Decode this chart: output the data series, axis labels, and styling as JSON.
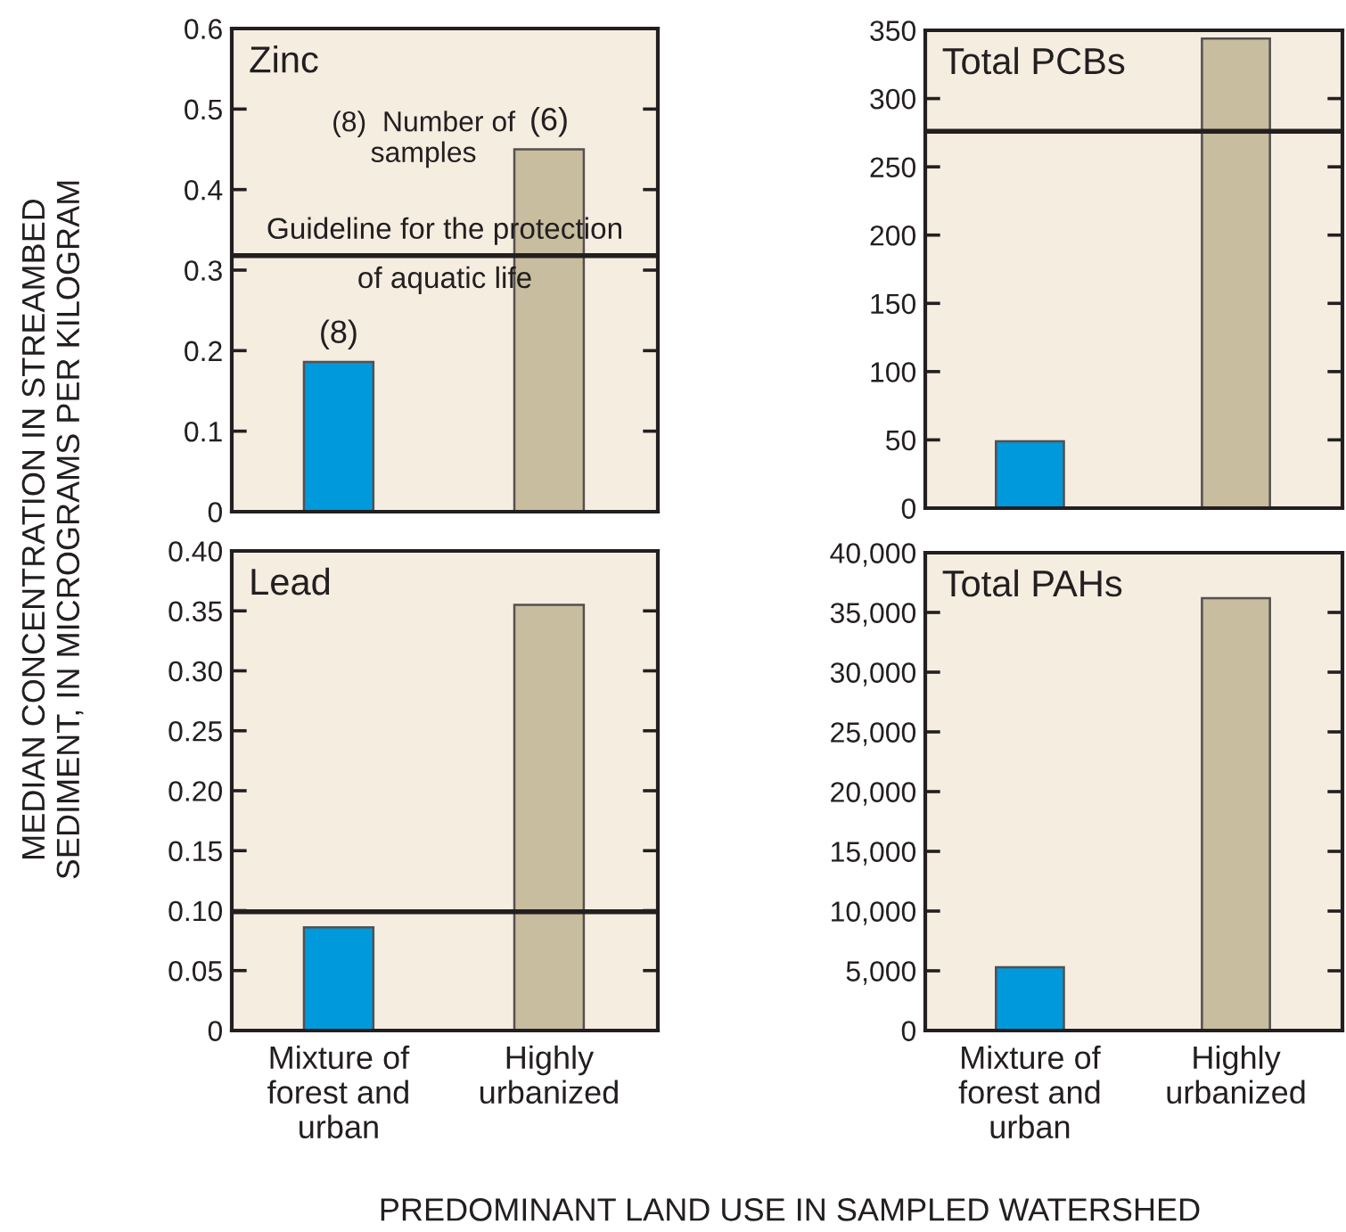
{
  "chart_data": [
    {
      "type": "bar",
      "title": "Zinc",
      "ylabel": "MEDIAN CONCENTRATION IN STREAMBED\nSEDIMENT, IN MICROGRAMS PER KILOGRAM",
      "categories": [
        "Mixture of\nforest and\nurban",
        "Highly\nurbanized"
      ],
      "values": [
        0.186,
        0.45
      ],
      "colors": [
        "#0099dc",
        "#c8bd9f"
      ],
      "ylim": [
        0,
        0.6
      ],
      "yticks": [
        0,
        0.1,
        0.2,
        0.3,
        0.4,
        0.5,
        0.6
      ],
      "tick_labels": "y",
      "ref_lines": [
        {
          "axis": "y",
          "value": 0.318,
          "label": "Guideline for the protection\nof aquatic life",
          "color": "#231f20"
        }
      ],
      "annotations": [
        "(8)  Number of\nsamples",
        {
          "text": "(8)",
          "x": "Mixture of\nforest and\nurban",
          "y": 0.186
        },
        {
          "text": "(6)",
          "x": "Highly\nurbanized",
          "y": 0.45
        }
      ]
    },
    {
      "type": "bar",
      "title": "Total PCBs",
      "categories": [
        "Mixture of\nforest and\nurban",
        "Highly\nurbanized"
      ],
      "values": [
        49,
        344
      ],
      "colors": [
        "#0099dc",
        "#c8bd9f"
      ],
      "ylim": [
        0,
        350
      ],
      "yticks": [
        0,
        50,
        100,
        150,
        200,
        250,
        300,
        350
      ],
      "tick_labels": "y",
      "ref_lines": [
        {
          "axis": "y",
          "value": 276,
          "color": "#231f20"
        }
      ]
    },
    {
      "type": "bar",
      "title": "Lead",
      "categories": [
        "Mixture of\nforest and\nurban",
        "Highly\nurbanized"
      ],
      "values": [
        0.086,
        0.355
      ],
      "colors": [
        "#0099dc",
        "#c8bd9f"
      ],
      "ylim": [
        0,
        0.4
      ],
      "yticks": [
        0,
        {
          "value": 0.05,
          "label": "0.05"
        },
        {
          "value": 0.1,
          "label": "0.10"
        },
        {
          "value": 0.15,
          "label": "0.15"
        },
        {
          "value": 0.2,
          "label": "0.20"
        },
        {
          "value": 0.25,
          "label": "0.25"
        },
        {
          "value": 0.3,
          "label": "0.30"
        },
        {
          "value": 0.35,
          "label": "0.35"
        },
        {
          "value": 0.4,
          "label": "0.40"
        }
      ],
      "ref_lines": [
        {
          "axis": "y",
          "value": 0.099,
          "color": "#231f20"
        }
      ]
    },
    {
      "type": "bar",
      "title": "Total PAHs",
      "xlabel": "PREDOMINANT LAND USE IN SAMPLED WATERSHED",
      "categories": [
        "Mixture of\nforest and\nurban",
        "Highly\nurbanized"
      ],
      "values": [
        5300,
        36200
      ],
      "colors": [
        "#0099dc",
        "#c8bd9f"
      ],
      "ylim": [
        0,
        40000
      ],
      "yticks": [
        0,
        {
          "value": 5000,
          "label": "5,000"
        },
        {
          "value": 10000,
          "label": "10,000"
        },
        {
          "value": 15000,
          "label": "15,000"
        },
        {
          "value": 20000,
          "label": "20,000"
        },
        {
          "value": 25000,
          "label": "25,000"
        },
        {
          "value": 30000,
          "label": "30,000"
        },
        {
          "value": 35000,
          "label": "35,000"
        },
        {
          "value": 40000,
          "label": "40,000"
        }
      ]
    }
  ]
}
